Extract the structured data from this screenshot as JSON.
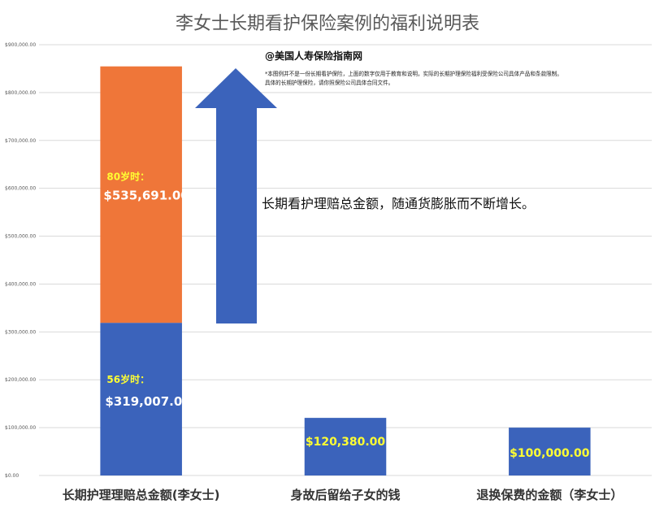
{
  "chart_data": {
    "type": "bar",
    "title": "李女士长期看护保险案例的福利说明表",
    "categories": [
      "长期护理理赔总金额(李女士)",
      "身故后留给子女的钱",
      "退换保费的金额（李女士）"
    ],
    "series": [
      {
        "name": "",
        "values": [
          319007,
          120380,
          100000
        ]
      },
      {
        "name": "",
        "values": [
          535691,
          0,
          0
        ]
      }
    ],
    "ylim": [
      0,
      900000
    ],
    "yticks": [
      "$0.00",
      "$100,000.00",
      "$200,000.00",
      "$300,000.00",
      "$400,000.00",
      "$500,000.00",
      "$600,000.00",
      "$700,000.00",
      "$800,000.00",
      "$900,000.00"
    ],
    "grid": true,
    "colors": {
      "base": "#3b63bb",
      "top": "#ef7639",
      "label_yellow": "#ffff33",
      "label_white": "#ffffff",
      "grid": "#d9d9d9"
    },
    "bar_labels": [
      {
        "age": "56岁时：",
        "amount": "$319,007.00"
      },
      {
        "age": "80岁时：",
        "amount": "$535,691.00"
      },
      {
        "amount": "$120,380.00"
      },
      {
        "amount": "$100,000.00"
      }
    ],
    "annotations": {
      "source": "@美国人寿保险指南网",
      "disclaimer_line1": "*本图例并不是一份长期看护保险，上面的数字仅用于教育和说明，实际的长期护理保险福利受保险公司具体产品和条款限制。",
      "disclaimer_line2": "具体的长期护理保险，请你照保险公司具体合同文件。",
      "arrow_text": "长期看护理赔总金额，随通货膨胀而不断增长。"
    }
  }
}
